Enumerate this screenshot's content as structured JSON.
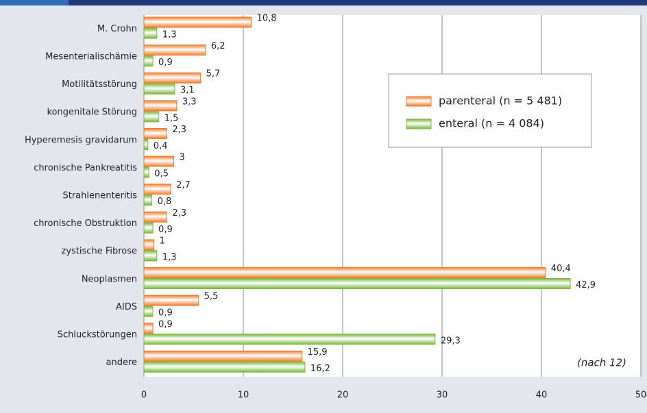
{
  "chart_data": {
    "type": "barh",
    "categories": [
      "M. Crohn",
      "Mesenterialischämie",
      "Motilitätsstörung",
      "kongenitale Störung",
      "Hyperemesis gravidarum",
      "chronische Pankreatitis",
      "Strahlenenteritis",
      "chronische Obstruktion",
      "zystische Fibrose",
      "Neoplasmen",
      "AIDS",
      "Schluckstörungen",
      "andere"
    ],
    "series": [
      {
        "name": "parenteral (n = 5 481)",
        "color": "#ef7d2b",
        "values": [
          10.8,
          6.2,
          5.7,
          3.3,
          2.3,
          3,
          2.7,
          2.3,
          1,
          40.4,
          5.5,
          0.9,
          15.9
        ],
        "value_labels": [
          "10,8",
          "6,2",
          "5,7",
          "3,3",
          "2,3",
          "3",
          "2,7",
          "2,3",
          "1",
          "40,4",
          "5,5",
          "0,9",
          "15,9"
        ]
      },
      {
        "name": "enteral (n = 4 084)",
        "color": "#78b83a",
        "values": [
          1.3,
          0.9,
          3.1,
          1.5,
          0.4,
          0.5,
          0.8,
          0.9,
          1.3,
          42.9,
          0.9,
          29.3,
          16.2
        ],
        "value_labels": [
          "1,3",
          "0,9",
          "3,1",
          "1,5",
          "0,4",
          "0,5",
          "0,8",
          "0,9",
          "1,3",
          "42,9",
          "0,9",
          "29,3",
          "16,2"
        ]
      }
    ],
    "xlim": [
      0,
      50
    ],
    "xticks": [
      0,
      10,
      20,
      30,
      40,
      50
    ],
    "grid": true,
    "annotation": "(nach 12)"
  }
}
